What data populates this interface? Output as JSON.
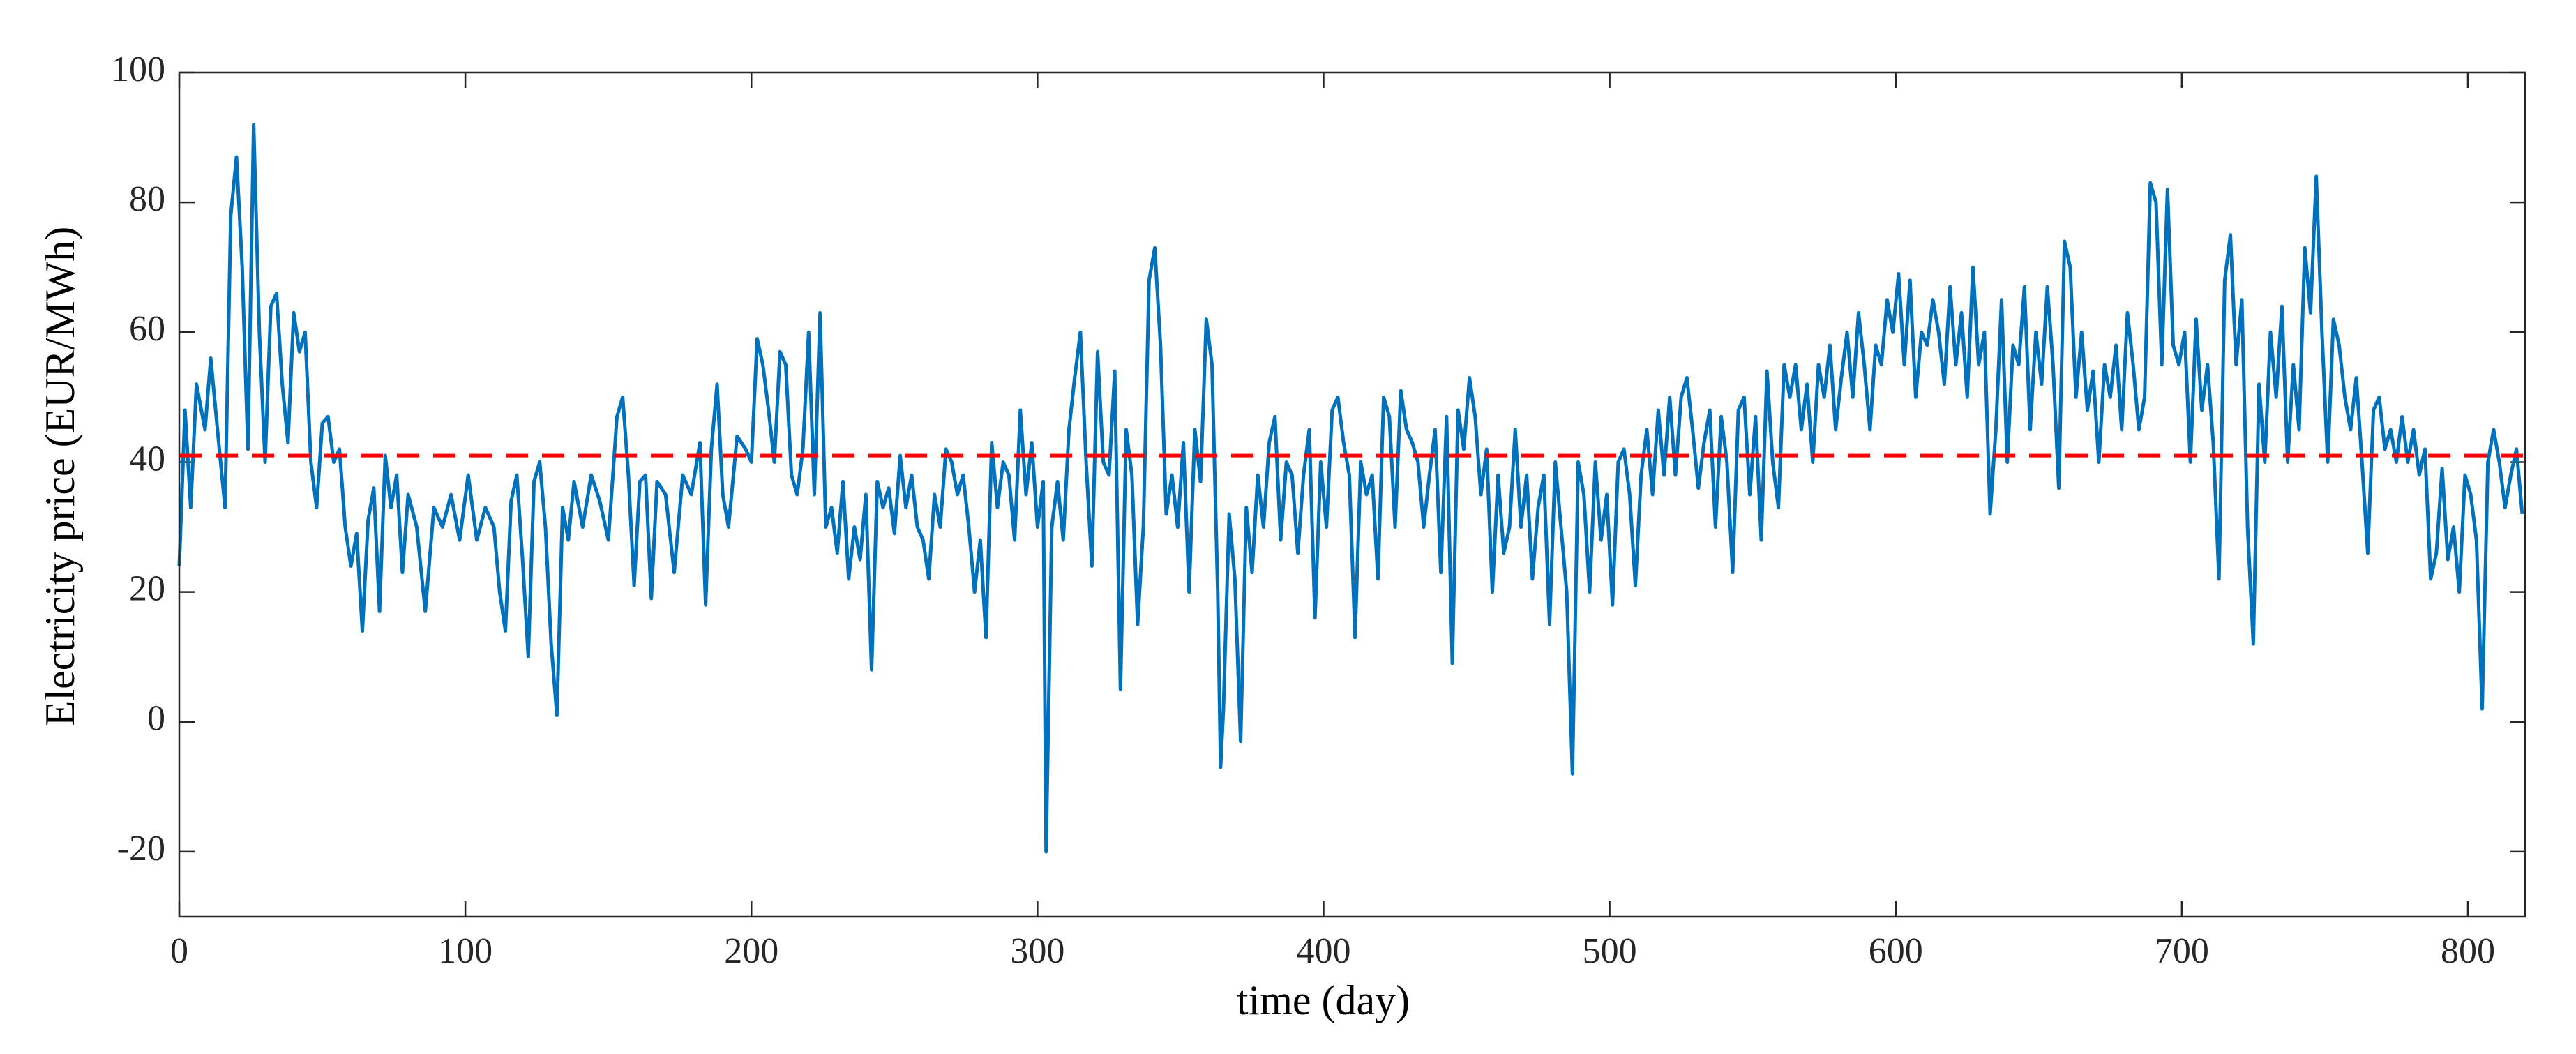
{
  "chart_data": {
    "type": "line",
    "x_label": "time (day)",
    "y_label": "Electricity price (EUR/MWh)",
    "xlim": [
      0,
      820
    ],
    "xticks": [
      0,
      100,
      200,
      300,
      400,
      500,
      600,
      700,
      800
    ],
    "ylim": [
      -30,
      100
    ],
    "yticks": [
      -20,
      0,
      20,
      40,
      60,
      80,
      100
    ],
    "reference_line": {
      "value": 41,
      "color": "#ff0000",
      "dashed": true
    },
    "x": [
      0,
      2,
      4,
      6,
      9,
      11,
      14,
      16,
      18,
      20,
      22,
      24,
      26,
      28,
      30,
      32,
      34,
      36,
      38,
      40,
      42,
      44,
      46,
      48,
      50,
      52,
      54,
      56,
      58,
      60,
      62,
      64,
      66,
      68,
      70,
      72,
      74,
      76,
      78,
      80,
      83,
      86,
      89,
      92,
      95,
      98,
      101,
      104,
      107,
      110,
      112,
      114,
      116,
      118,
      120,
      122,
      124,
      126,
      128,
      130,
      132,
      134,
      136,
      138,
      141,
      144,
      147,
      150,
      153,
      155,
      157,
      159,
      161,
      163,
      165,
      167,
      170,
      173,
      176,
      179,
      182,
      184,
      186,
      188,
      190,
      192,
      195,
      198,
      200,
      202,
      204,
      206,
      208,
      210,
      212,
      214,
      216,
      218,
      220,
      222,
      224,
      226,
      228,
      230,
      232,
      234,
      236,
      238,
      240,
      242,
      244,
      246,
      248,
      250,
      252,
      254,
      256,
      258,
      260,
      262,
      264,
      266,
      268,
      270,
      272,
      274,
      276,
      278,
      280,
      282,
      284,
      286,
      288,
      290,
      292,
      294,
      296,
      298,
      300,
      302,
      303,
      305,
      307,
      309,
      311,
      313,
      315,
      317,
      319,
      321,
      323,
      325,
      327,
      329,
      331,
      333,
      335,
      337,
      339,
      341,
      343,
      345,
      347,
      349,
      351,
      353,
      355,
      357,
      359,
      361,
      363,
      364,
      365,
      367,
      369,
      371,
      373,
      375,
      377,
      379,
      381,
      383,
      385,
      387,
      389,
      391,
      393,
      395,
      397,
      399,
      401,
      403,
      405,
      407,
      409,
      411,
      413,
      415,
      417,
      419,
      421,
      423,
      425,
      427,
      429,
      431,
      433,
      435,
      437,
      439,
      441,
      443,
      445,
      447,
      449,
      451,
      453,
      455,
      457,
      459,
      461,
      463,
      465,
      467,
      469,
      471,
      473,
      475,
      477,
      479,
      481,
      483,
      485,
      487,
      489,
      491,
      493,
      495,
      497,
      499,
      501,
      503,
      505,
      507,
      509,
      511,
      513,
      515,
      517,
      519,
      521,
      523,
      525,
      527,
      529,
      531,
      533,
      535,
      537,
      539,
      541,
      543,
      545,
      547,
      549,
      551,
      553,
      555,
      557,
      559,
      561,
      563,
      565,
      567,
      569,
      571,
      573,
      575,
      577,
      579,
      581,
      583,
      585,
      587,
      589,
      591,
      593,
      595,
      597,
      599,
      601,
      603,
      605,
      607,
      609,
      611,
      613,
      615,
      617,
      619,
      621,
      623,
      625,
      627,
      629,
      631,
      633,
      635,
      637,
      639,
      641,
      643,
      645,
      647,
      649,
      651,
      653,
      655,
      657,
      659,
      661,
      663,
      665,
      667,
      669,
      671,
      673,
      675,
      677,
      679,
      681,
      683,
      685,
      687,
      689,
      691,
      693,
      695,
      697,
      699,
      701,
      703,
      705,
      707,
      709,
      711,
      713,
      715,
      717,
      719,
      721,
      723,
      725,
      727,
      729,
      731,
      733,
      735,
      737,
      739,
      741,
      743,
      745,
      747,
      749,
      751,
      753,
      755,
      757,
      759,
      761,
      763,
      765,
      767,
      769,
      771,
      773,
      775,
      777,
      779,
      781,
      783,
      785,
      787,
      789,
      791,
      793,
      795,
      797,
      799,
      801,
      803,
      805,
      807,
      809,
      811,
      813,
      815,
      817,
      819
    ],
    "series": [
      {
        "color": "#0072bd",
        "values": [
          24,
          48,
          33,
          52,
          45,
          56,
          42,
          33,
          78,
          87,
          70,
          42,
          92,
          60,
          40,
          64,
          66,
          52,
          43,
          63,
          57,
          60,
          40,
          33,
          46,
          47,
          40,
          42,
          30,
          24,
          29,
          14,
          31,
          36,
          17,
          41,
          33,
          38,
          23,
          35,
          30,
          17,
          33,
          30,
          35,
          28,
          38,
          28,
          33,
          30,
          20,
          14,
          34,
          38,
          25,
          10,
          37,
          40,
          30,
          12,
          1,
          33,
          28,
          37,
          30,
          38,
          34,
          28,
          47,
          50,
          38,
          21,
          37,
          38,
          19,
          37,
          35,
          23,
          38,
          35,
          43,
          18,
          42,
          52,
          35,
          30,
          44,
          42,
          40,
          59,
          55,
          48,
          40,
          57,
          55,
          38,
          35,
          42,
          60,
          35,
          63,
          30,
          33,
          26,
          37,
          22,
          30,
          25,
          35,
          8,
          37,
          33,
          36,
          29,
          41,
          33,
          38,
          30,
          28,
          22,
          35,
          30,
          42,
          40,
          35,
          38,
          30,
          20,
          28,
          13,
          43,
          33,
          40,
          38,
          28,
          48,
          35,
          43,
          30,
          37,
          -20,
          30,
          37,
          28,
          45,
          53,
          60,
          40,
          24,
          57,
          40,
          38,
          54,
          5,
          45,
          38,
          15,
          30,
          68,
          73,
          58,
          32,
          38,
          30,
          43,
          20,
          45,
          37,
          62,
          55,
          20,
          -7,
          2,
          32,
          22,
          -3,
          33,
          23,
          38,
          30,
          43,
          47,
          28,
          40,
          38,
          26,
          38,
          45,
          16,
          40,
          30,
          48,
          50,
          43,
          38,
          13,
          40,
          35,
          38,
          22,
          50,
          47,
          30,
          51,
          45,
          43,
          40,
          30,
          38,
          45,
          23,
          47,
          9,
          48,
          42,
          53,
          47,
          35,
          42,
          20,
          38,
          26,
          30,
          45,
          30,
          38,
          22,
          33,
          38,
          15,
          40,
          30,
          20,
          -8,
          40,
          35,
          20,
          40,
          28,
          35,
          18,
          40,
          42,
          35,
          21,
          38,
          45,
          35,
          48,
          38,
          50,
          38,
          50,
          53,
          45,
          36,
          43,
          48,
          30,
          47,
          40,
          23,
          48,
          50,
          35,
          47,
          28,
          54,
          40,
          33,
          55,
          50,
          55,
          45,
          52,
          40,
          55,
          50,
          58,
          45,
          53,
          60,
          50,
          63,
          55,
          45,
          58,
          55,
          65,
          60,
          69,
          55,
          68,
          50,
          60,
          58,
          65,
          60,
          52,
          67,
          55,
          63,
          50,
          70,
          55,
          60,
          32,
          45,
          65,
          40,
          58,
          55,
          67,
          45,
          60,
          52,
          67,
          55,
          36,
          74,
          70,
          50,
          60,
          48,
          54,
          40,
          55,
          50,
          58,
          45,
          63,
          55,
          45,
          50,
          83,
          80,
          55,
          82,
          58,
          55,
          60,
          40,
          62,
          48,
          55,
          43,
          22,
          68,
          75,
          55,
          65,
          30,
          12,
          52,
          40,
          60,
          50,
          64,
          40,
          55,
          45,
          73,
          63,
          84,
          60,
          40,
          62,
          58,
          50,
          45,
          53,
          40,
          26,
          48,
          50,
          42,
          45,
          40,
          47,
          40,
          45,
          38,
          42,
          22,
          26,
          39,
          25,
          30,
          20,
          38,
          35,
          28,
          2,
          40,
          45,
          40,
          33,
          38,
          42,
          32
        ]
      }
    ]
  }
}
